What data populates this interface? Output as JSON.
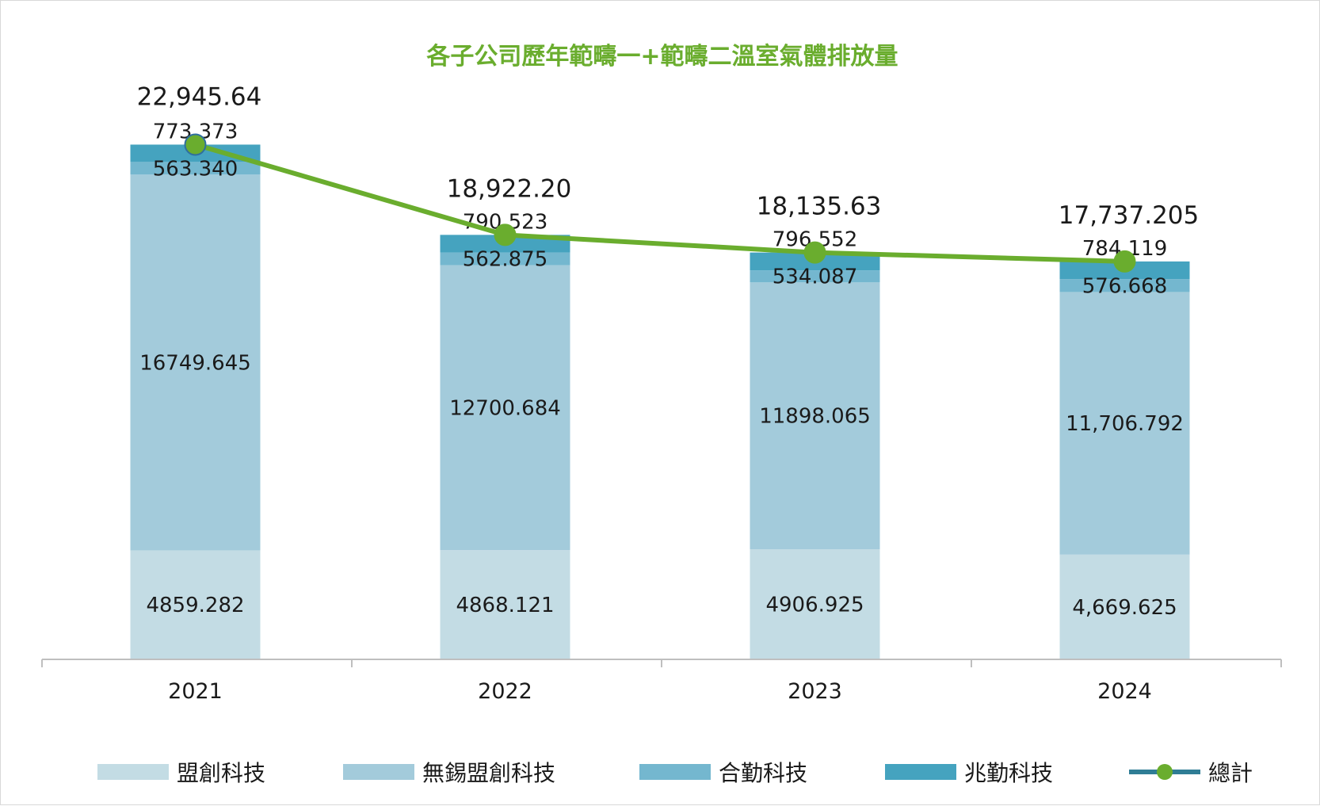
{
  "chart_data": {
    "type": "bar",
    "stacked": true,
    "title": "各子公司歷年範疇一+範疇二溫室氣體排放量",
    "categories": [
      "2021",
      "2022",
      "2023",
      "2024"
    ],
    "ylim": [
      0,
      26000
    ],
    "grid": false,
    "legend_position": "bottom",
    "series": [
      {
        "name": "盟創科技",
        "color": "#c3dce4",
        "values": [
          4859.282,
          4868.121,
          4906.925,
          4669.625
        ],
        "labels": [
          "4859.282",
          "4868.121",
          "4906.925",
          "4,669.625"
        ]
      },
      {
        "name": "無錫盟創科技",
        "color": "#a3cbdb",
        "values": [
          16749.645,
          12700.684,
          11898.065,
          11706.792
        ],
        "labels": [
          "16749.645",
          "12700.684",
          "11898.065",
          "11,706.792"
        ]
      },
      {
        "name": "合勤科技",
        "color": "#74b7cf",
        "values": [
          563.34,
          562.875,
          534.087,
          576.668
        ],
        "labels": [
          "563.340",
          "562.875",
          "534.087",
          "576.668"
        ]
      },
      {
        "name": "兆勤科技",
        "color": "#45a3bf",
        "values": [
          773.373,
          790.523,
          796.552,
          784.119
        ],
        "labels": [
          "773.373",
          "790.523",
          "796.552",
          "784.119"
        ]
      }
    ],
    "total": {
      "name": "總計",
      "type": "line",
      "color": "#6aad2e",
      "values": [
        22945.64,
        18922.2,
        18135.63,
        17737.205
      ],
      "labels": [
        "22,945.64",
        "18,922.20",
        "18,135.63",
        "17,737.205"
      ]
    }
  }
}
